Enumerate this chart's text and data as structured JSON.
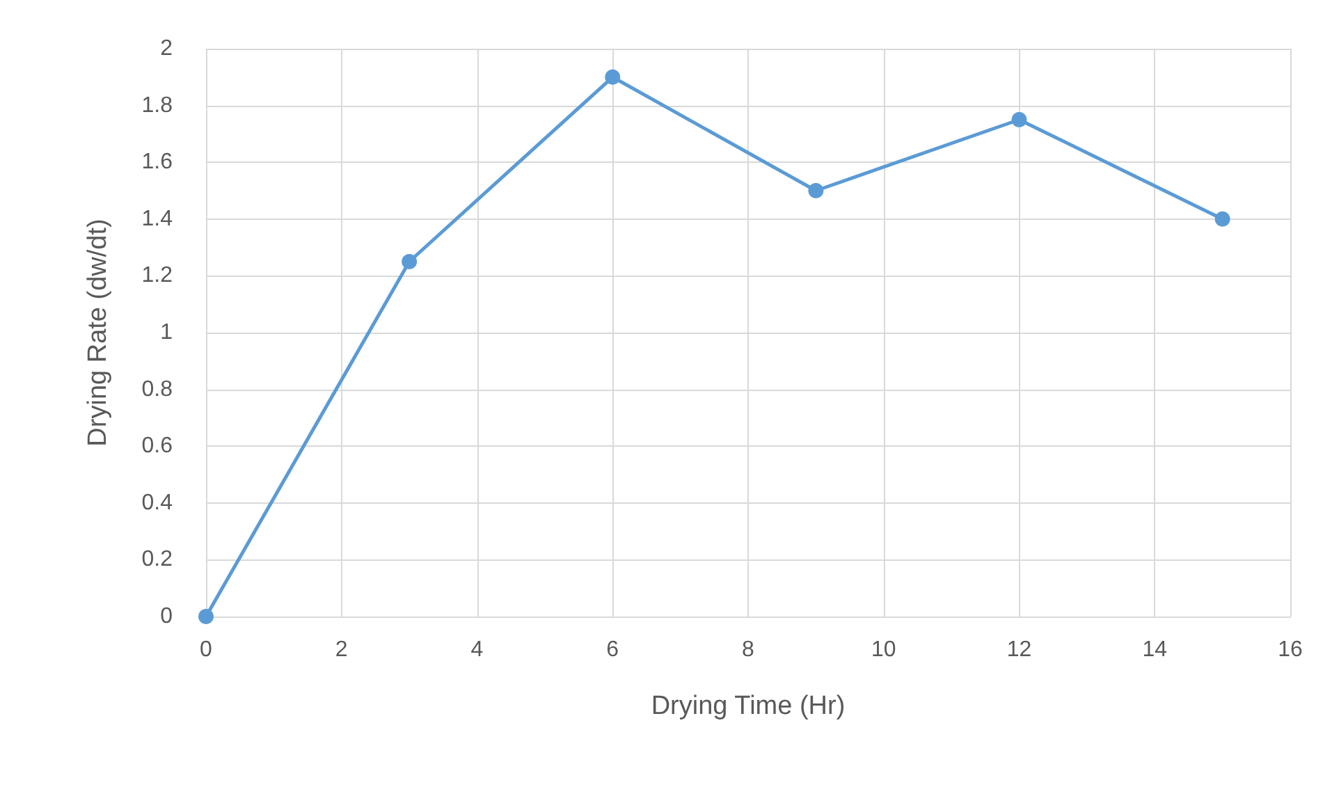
{
  "chart_data": {
    "type": "line",
    "xlabel": "Drying Time (Hr)",
    "ylabel": "Drying Rate (dw/dt)",
    "x": [
      0,
      3,
      6,
      9,
      12,
      15
    ],
    "series": [
      {
        "color": "#5b9bd5",
        "values": [
          0,
          1.25,
          1.9,
          1.5,
          1.75,
          1.4
        ]
      }
    ],
    "xlim": [
      0,
      16
    ],
    "xticks": [
      0,
      2,
      4,
      6,
      8,
      10,
      12,
      14,
      16
    ],
    "ylim": [
      0,
      2
    ],
    "yticks": [
      0,
      0.2,
      0.4,
      0.6,
      0.8,
      1,
      1.2,
      1.4,
      1.6,
      1.8,
      2
    ],
    "grid": true,
    "marker": "circle",
    "line_style": "solid"
  }
}
